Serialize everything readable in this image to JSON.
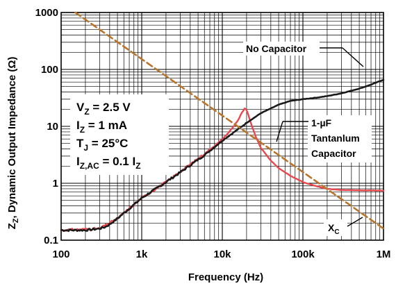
{
  "chart_data": {
    "type": "line",
    "xscale": "log",
    "yscale": "log",
    "xlim": [
      100,
      1000000
    ],
    "ylim": [
      0.1,
      1000
    ],
    "grid": true,
    "xlabel": "Frequency (Hz)",
    "ylabel": "Z",
    "ylabel_sub": "Z",
    "ylabel_rest": ", Dynamic Output Impedance (Ω)",
    "x_ticks": [
      100,
      1000,
      10000,
      100000,
      1000000
    ],
    "x_tick_labels": [
      "100",
      "1k",
      "10k",
      "100k",
      "1M"
    ],
    "y_ticks": [
      0.1,
      1,
      10,
      100,
      1000
    ],
    "y_tick_labels": [
      "0.1",
      "1",
      "10",
      "100",
      "1000"
    ],
    "series": [
      {
        "name": "No Capacitor",
        "color": "#1a1a1a",
        "x": [
          100,
          150,
          200,
          250,
          300,
          350,
          400,
          500,
          600,
          800,
          1000,
          1500,
          2000,
          3000,
          5000,
          7000,
          10000,
          15000,
          20000,
          30000,
          50000,
          70000,
          100000,
          150000,
          200000,
          300000,
          500000,
          700000,
          1000000
        ],
        "y": [
          0.15,
          0.15,
          0.15,
          0.155,
          0.16,
          0.17,
          0.19,
          0.24,
          0.3,
          0.42,
          0.55,
          0.8,
          1.05,
          1.55,
          2.6,
          3.7,
          5.6,
          8.5,
          11.5,
          17,
          24,
          28,
          30,
          32,
          34,
          38,
          46,
          54,
          66
        ]
      },
      {
        "name": "1-µF Tantanlum Capacitor",
        "color": "#e8484d",
        "x": [
          100,
          300,
          500,
          1000,
          2000,
          3000,
          5000,
          7000,
          10000,
          12000,
          14000,
          16000,
          17000,
          18000,
          19000,
          20000,
          21000,
          22000,
          24000,
          26000,
          30000,
          40000,
          50000,
          70000,
          100000,
          150000,
          200000,
          300000,
          500000,
          700000,
          1000000
        ],
        "y": [
          0.15,
          0.16,
          0.24,
          0.55,
          1.05,
          1.6,
          2.7,
          3.9,
          5.9,
          7.8,
          10.2,
          13.5,
          16,
          18.5,
          20.5,
          19.5,
          16,
          12.8,
          9,
          6.6,
          4.2,
          2.5,
          1.85,
          1.35,
          1.05,
          0.88,
          0.8,
          0.76,
          0.75,
          0.75,
          0.74
        ]
      },
      {
        "name": "X",
        "name_sub": "C",
        "color": "#b8752c",
        "x": [
          150,
          1000000
        ],
        "y": [
          1000,
          0.16
        ]
      }
    ],
    "annotations": {
      "no_cap": "No Capacitor",
      "tant_1": "1-µF",
      "tant_2": "Tantanlum",
      "tant_3": "Capacitor",
      "xc": "X",
      "xc_sub": "C"
    },
    "conditions": [
      {
        "main": "V",
        "sub": "Z",
        "rest": " = 2.5 V"
      },
      {
        "main": "I",
        "sub": "Z",
        "rest": " = 1 mA"
      },
      {
        "main": "T",
        "sub": "J",
        "rest": " = 25°C"
      },
      {
        "main": "I",
        "sub": "Z,AC",
        "rest": " = 0.1 I",
        "sub2": "Z"
      }
    ]
  }
}
